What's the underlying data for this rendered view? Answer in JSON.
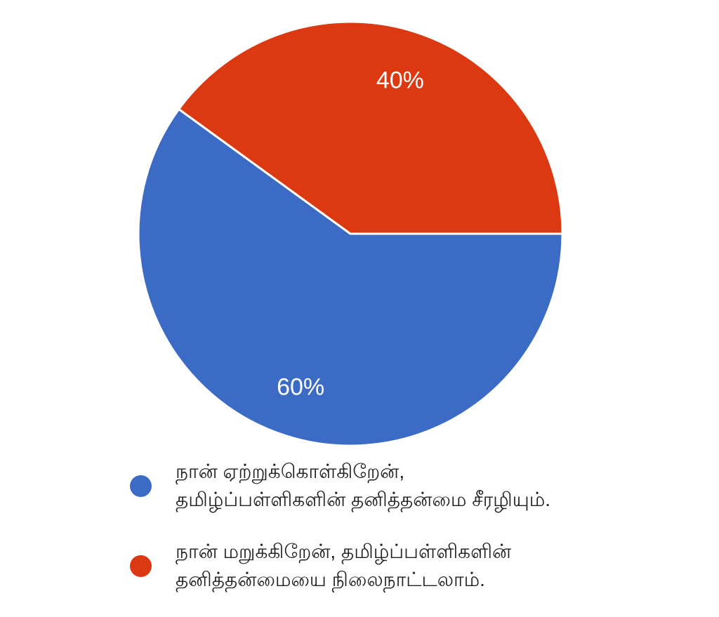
{
  "page": {
    "background": "#ffffff"
  },
  "chart_data": {
    "type": "pie",
    "title": "",
    "start_angle_deg": 0,
    "direction": "clockwise",
    "slice_border_color": "#ffffff",
    "percent_label_color": "#ffffff",
    "legend_position": "bottom-left",
    "slices": [
      {
        "label": "நான் ஏற்றுக்கொள்கிறேன், தமிழ்ப்பள்ளிகளின் தனித்தன்மை சீரழியும்.",
        "value": 60,
        "percent_label": "60%",
        "color": "#3C6BC6"
      },
      {
        "label": "நான் மறுக்கிறேன், தமிழ்ப்பள்ளிகளின் தனித்தன்மையை நிலைநாட்டலாம்.",
        "value": 40,
        "percent_label": "40%",
        "color": "#DC3912"
      }
    ]
  },
  "legend": {
    "text_color": "#212121",
    "items": [
      {
        "swatch_color": "#3C6BC6",
        "lines": [
          "நான் ஏற்றுக்கொள்கிறேன்,",
          "தமிழ்ப்பள்ளிகளின் தனித்தன்மை சீரழியும்."
        ]
      },
      {
        "swatch_color": "#DC3912",
        "lines": [
          "நான் மறுக்கிறேன், தமிழ்ப்பள்ளிகளின்",
          "தனித்தன்மையை நிலைநாட்டலாம்."
        ]
      }
    ]
  }
}
